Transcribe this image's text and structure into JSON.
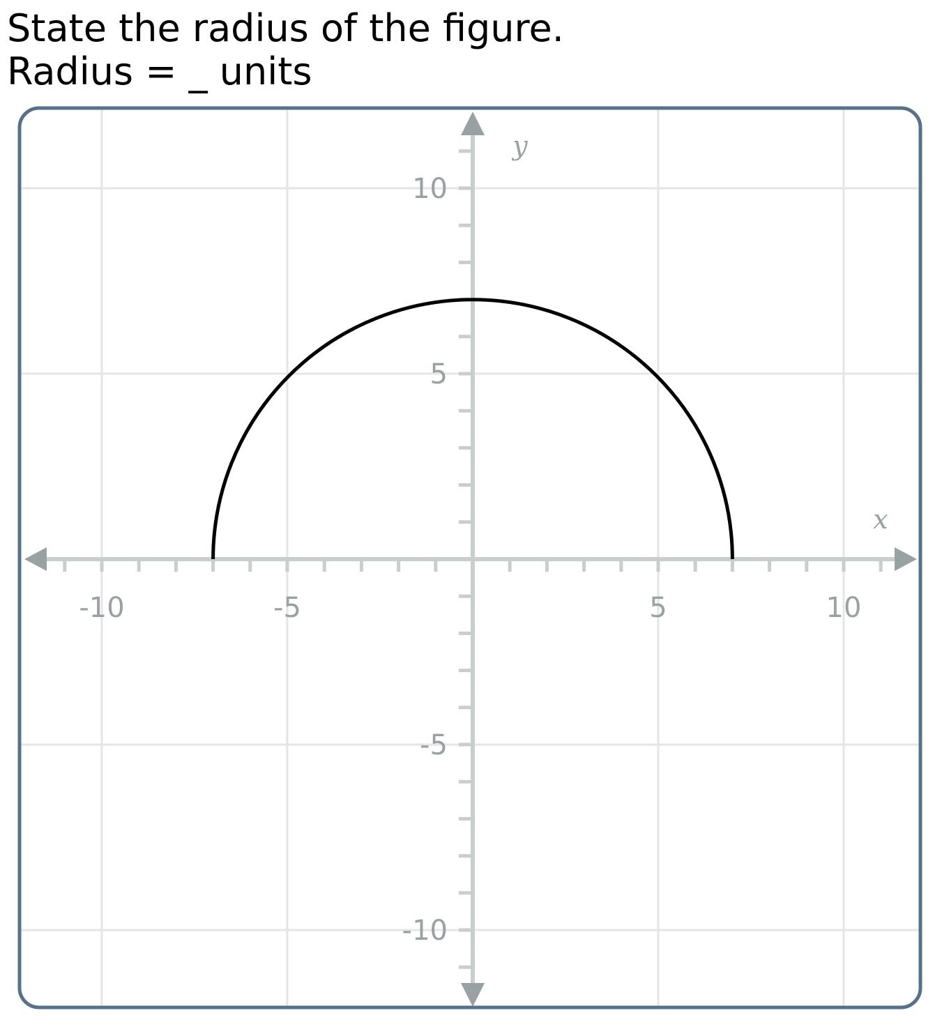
{
  "question": {
    "line1": "State the radius of the figure.",
    "line2": "Radius = _ units"
  },
  "graph": {
    "axis_labels": {
      "x": "x",
      "y": "y"
    },
    "x_range": [
      -12,
      12
    ],
    "y_range": [
      -12,
      12
    ],
    "x_tick_labels": [
      {
        "value": -10,
        "text": "-10"
      },
      {
        "value": -5,
        "text": "-5"
      },
      {
        "value": 5,
        "text": "5"
      },
      {
        "value": 10,
        "text": "10"
      }
    ],
    "y_tick_labels": [
      {
        "value": 10,
        "text": "10"
      },
      {
        "value": 5,
        "text": "5"
      },
      {
        "value": -5,
        "text": "-5"
      },
      {
        "value": -10,
        "text": "-10"
      }
    ],
    "grid_every": 5,
    "minor_tick_every": 1,
    "curve": {
      "shape": "upper semicircle",
      "center": [
        0,
        0
      ],
      "radius": 7
    },
    "colors": {
      "frame": "#56718a",
      "grid": "#e4e6e6",
      "axis": "#c8cdce",
      "arrow": "#9aa1a2",
      "curve": "#000000"
    }
  }
}
